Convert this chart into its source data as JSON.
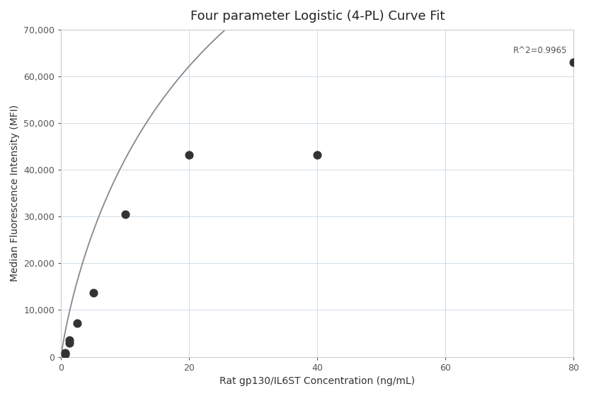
{
  "title": "Four parameter Logistic (4-PL) Curve Fit",
  "xlabel": "Rat gp130/IL6ST Concentration (ng/mL)",
  "ylabel": "Median Fluorescence Intensity (MFI)",
  "scatter_x": [
    0.625,
    0.625,
    1.25,
    1.25,
    2.5,
    5.0,
    10.0,
    20.0,
    40.0,
    80.0
  ],
  "scatter_y": [
    500,
    900,
    3000,
    3500,
    7200,
    13700,
    30500,
    43200,
    43200,
    63000
  ],
  "xlim": [
    0,
    80
  ],
  "ylim": [
    0,
    70000
  ],
  "xticks": [
    0,
    20,
    40,
    60,
    80
  ],
  "yticks": [
    0,
    10000,
    20000,
    30000,
    40000,
    50000,
    60000,
    70000
  ],
  "r_squared": "R^2=0.9965",
  "dot_color": "#333333",
  "dot_size": 60,
  "curve_color": "#888888",
  "curve_lw": 1.3,
  "grid_color": "#d0dce8",
  "background_color": "#ffffff",
  "title_fontsize": 13,
  "axis_label_fontsize": 10,
  "tick_fontsize": 9
}
